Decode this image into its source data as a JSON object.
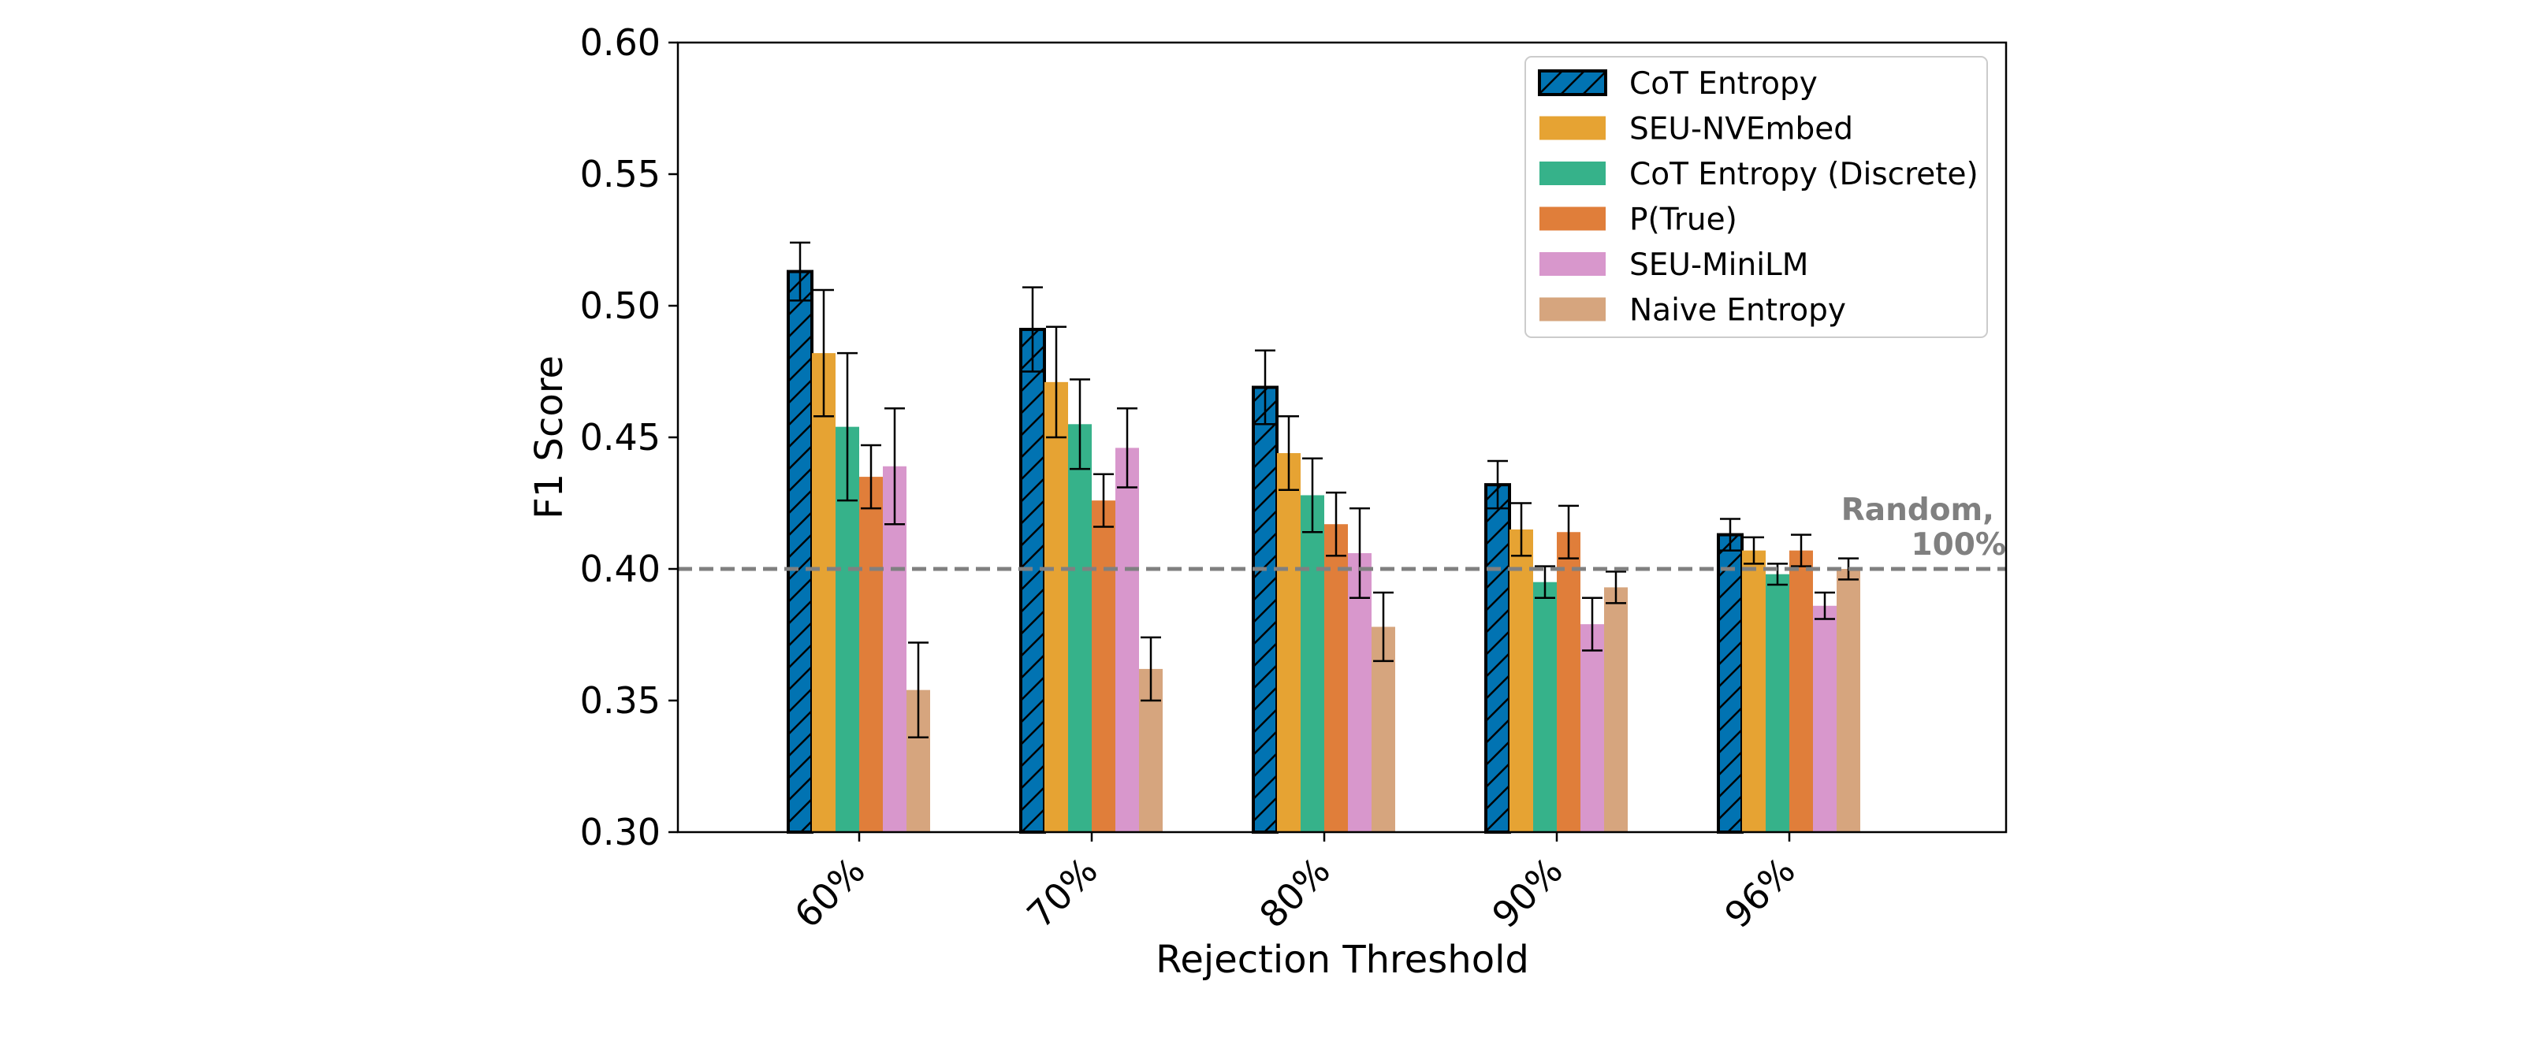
{
  "chart_data": {
    "type": "bar",
    "xlabel": "Rejection Threshold",
    "ylabel": "F1 Score",
    "ylim": [
      0.3,
      0.6
    ],
    "yticks": [
      "0.30",
      "0.35",
      "0.40",
      "0.45",
      "0.50",
      "0.55",
      "0.60"
    ],
    "categories": [
      "60%",
      "70%",
      "80%",
      "90%",
      "96%"
    ],
    "series": [
      {
        "name": "CoT Entropy",
        "color": "#0173B2",
        "hatch": true,
        "values": [
          0.513,
          0.491,
          0.469,
          0.432,
          0.413
        ],
        "errors": [
          0.011,
          0.016,
          0.014,
          0.009,
          0.006
        ]
      },
      {
        "name": "SEU-NVEmbed",
        "color": "#E6A333",
        "values": [
          0.482,
          0.471,
          0.444,
          0.415,
          0.407
        ],
        "errors": [
          0.024,
          0.021,
          0.014,
          0.01,
          0.005
        ]
      },
      {
        "name": "CoT Entropy (Discrete)",
        "color": "#36B28A",
        "values": [
          0.454,
          0.455,
          0.428,
          0.395,
          0.398
        ],
        "errors": [
          0.028,
          0.017,
          0.014,
          0.006,
          0.004
        ]
      },
      {
        "name": "P(True)",
        "color": "#E07E3A",
        "values": [
          0.435,
          0.426,
          0.417,
          0.414,
          0.407
        ],
        "errors": [
          0.012,
          0.01,
          0.012,
          0.01,
          0.006
        ]
      },
      {
        "name": "SEU-MiniLM",
        "color": "#D897CC",
        "values": [
          0.439,
          0.446,
          0.406,
          0.379,
          0.386
        ],
        "errors": [
          0.022,
          0.015,
          0.017,
          0.01,
          0.005
        ]
      },
      {
        "name": "Naive Entropy",
        "color": "#D6A57E",
        "values": [
          0.354,
          0.362,
          0.378,
          0.393,
          0.4
        ],
        "errors": [
          0.018,
          0.012,
          0.013,
          0.006,
          0.004
        ]
      }
    ],
    "reference_line": {
      "value": 0.4,
      "label_line1": "Random,",
      "label_line2": "100%",
      "color": "#808080"
    },
    "legend_position": "top-right"
  }
}
